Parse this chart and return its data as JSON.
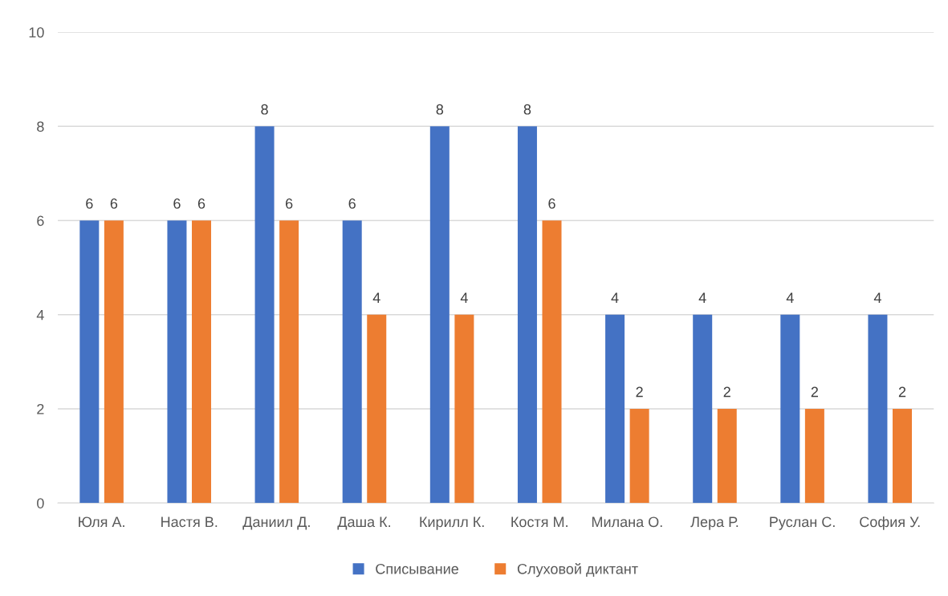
{
  "chart_data": {
    "type": "bar",
    "categories": [
      "Юля А.",
      "Настя В.",
      "Даниил Д.",
      "Даша К.",
      "Кирилл К.",
      "Костя М.",
      "Милана О.",
      "Лера Р.",
      "Руслан С.",
      "София У."
    ],
    "series": [
      {
        "name": "Списывание",
        "color": "#4472c4",
        "values": [
          6,
          6,
          8,
          6,
          8,
          8,
          4,
          4,
          4,
          4
        ]
      },
      {
        "name": "Слуховой диктант",
        "color": "#ed7d31",
        "values": [
          6,
          6,
          6,
          4,
          4,
          6,
          2,
          2,
          2,
          2
        ]
      }
    ],
    "ylim": [
      0,
      10
    ],
    "yticks": [
      0,
      2,
      4,
      6,
      8,
      10
    ],
    "grid": "y",
    "legend": "bottom",
    "data_labels": true
  }
}
